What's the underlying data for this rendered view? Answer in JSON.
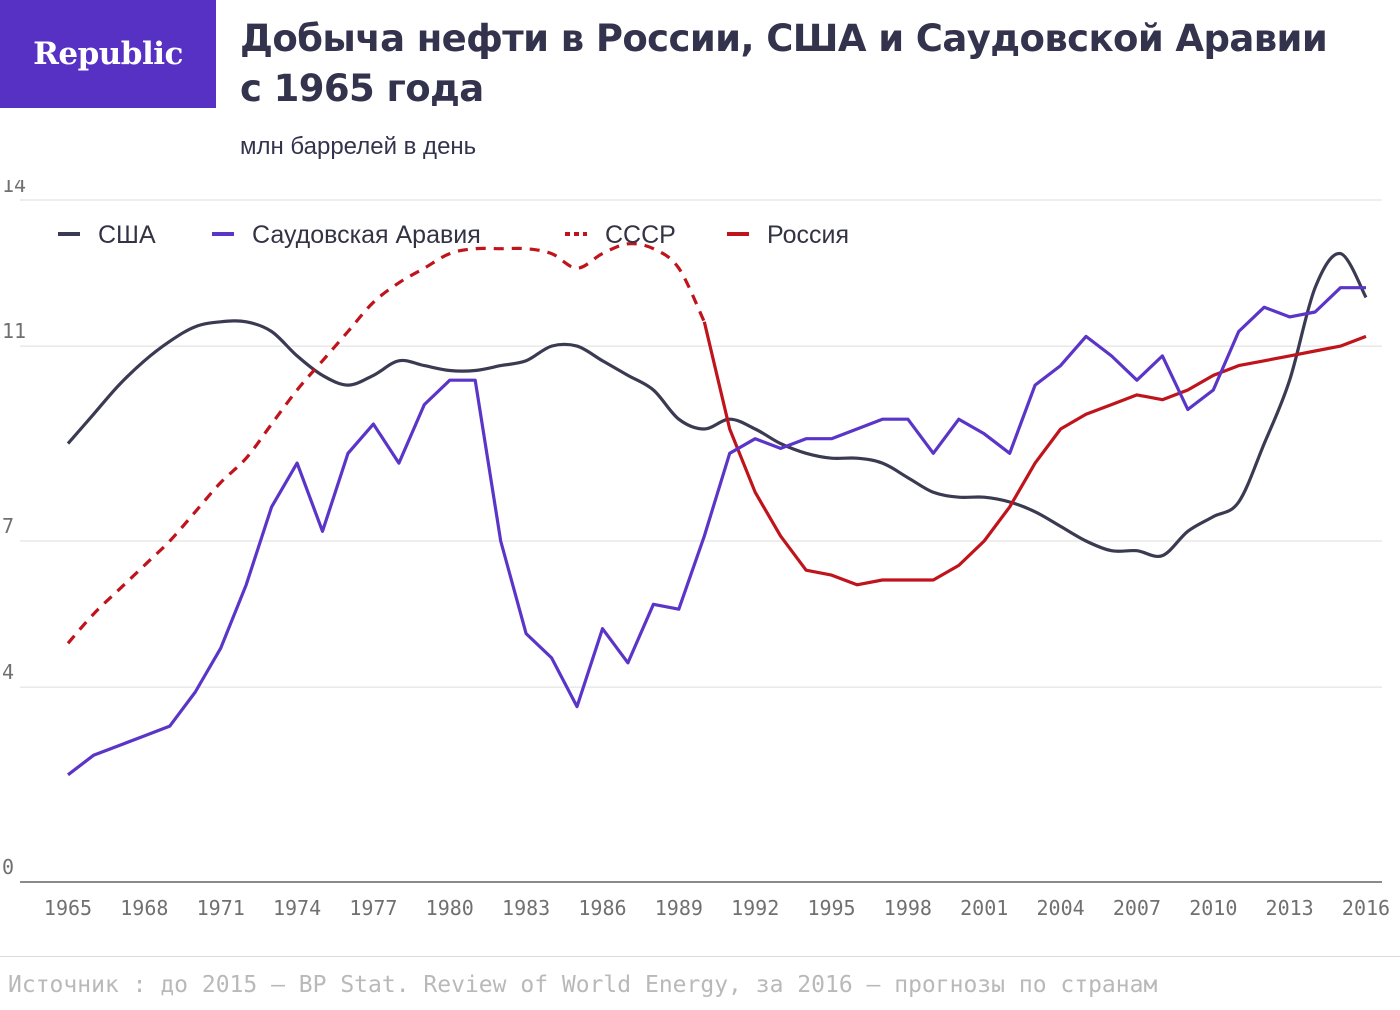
{
  "brand": {
    "logo_text": "Republic",
    "color": "#5731c4"
  },
  "title": "Добыча нефти в России, США и Саудовской Аравии с 1965 года",
  "subtitle": "млн баррелей в день",
  "source": "Источник : до 2015 – BP Stat. Review of World Energy, за 2016 – прогнозы по странам",
  "chart_data": {
    "type": "line",
    "ylim": [
      0,
      14
    ],
    "xlim": [
      1965,
      2016
    ],
    "y_ticks": [
      "0",
      "4",
      "7",
      "11",
      "14"
    ],
    "y_tick_values": [
      0,
      4,
      7,
      11,
      14
    ],
    "x_ticks": [
      "1965",
      "1968",
      "1971",
      "1974",
      "1977",
      "1980",
      "1983",
      "1986",
      "1989",
      "1992",
      "1995",
      "1998",
      "2001",
      "2004",
      "2007",
      "2010",
      "2013",
      "2016"
    ],
    "grid": true,
    "legend_position": "top-left",
    "series": [
      {
        "name": "США",
        "color": "#3a3a52",
        "dashed": false,
        "smooth": true,
        "x": [
          1965,
          1966,
          1967,
          1968,
          1969,
          1970,
          1971,
          1972,
          1973,
          1974,
          1975,
          1976,
          1977,
          1978,
          1979,
          1980,
          1981,
          1982,
          1983,
          1984,
          1985,
          1986,
          1987,
          1988,
          1989,
          1990,
          1991,
          1992,
          1993,
          1994,
          1995,
          1996,
          1997,
          1998,
          1999,
          2000,
          2001,
          2002,
          2003,
          2004,
          2005,
          2006,
          2007,
          2008,
          2009,
          2010,
          2011,
          2012,
          2013,
          2014,
          2015,
          2016
        ],
        "values": [
          9.0,
          9.6,
          10.2,
          10.7,
          11.1,
          11.4,
          11.5,
          11.5,
          11.3,
          10.8,
          10.4,
          10.2,
          10.4,
          10.7,
          10.6,
          10.5,
          10.5,
          10.6,
          10.7,
          11.0,
          11.0,
          10.7,
          10.4,
          10.1,
          9.5,
          9.3,
          9.5,
          9.3,
          9.0,
          8.8,
          8.7,
          8.7,
          8.6,
          8.3,
          8.0,
          7.9,
          7.9,
          7.8,
          7.6,
          7.3,
          7.0,
          6.8,
          6.8,
          6.7,
          7.2,
          7.5,
          7.8,
          9.0,
          10.3,
          12.2,
          12.9,
          12.0
        ]
      },
      {
        "name": "Саудовская Аравия",
        "color": "#5b35c8",
        "dashed": false,
        "smooth": false,
        "x": [
          1965,
          1966,
          1967,
          1968,
          1969,
          1970,
          1971,
          1972,
          1973,
          1974,
          1975,
          1976,
          1977,
          1978,
          1979,
          1980,
          1981,
          1982,
          1983,
          1984,
          1985,
          1986,
          1987,
          1988,
          1989,
          1990,
          1991,
          1992,
          1993,
          1994,
          1995,
          1996,
          1997,
          1998,
          1999,
          2000,
          2001,
          2002,
          2003,
          2004,
          2005,
          2006,
          2007,
          2008,
          2009,
          2010,
          2011,
          2012,
          2013,
          2014,
          2015,
          2016
        ],
        "values": [
          2.2,
          2.6,
          2.8,
          3.0,
          3.2,
          3.9,
          4.8,
          6.1,
          7.7,
          8.6,
          7.2,
          8.8,
          9.4,
          8.6,
          9.8,
          10.3,
          10.3,
          7.0,
          5.1,
          4.6,
          3.6,
          5.2,
          4.5,
          5.7,
          5.6,
          7.1,
          8.8,
          9.1,
          8.9,
          9.1,
          9.1,
          9.3,
          9.5,
          9.5,
          8.8,
          9.5,
          9.2,
          8.8,
          10.2,
          10.6,
          11.2,
          10.8,
          10.3,
          10.8,
          9.7,
          10.1,
          11.3,
          11.8,
          11.6,
          11.7,
          12.2,
          12.2
        ]
      },
      {
        "name": "СССР",
        "color": "#c0141c",
        "dashed": true,
        "smooth": true,
        "x": [
          1965,
          1966,
          1967,
          1968,
          1969,
          1970,
          1971,
          1972,
          1973,
          1974,
          1975,
          1976,
          1977,
          1978,
          1979,
          1980,
          1981,
          1982,
          1983,
          1984,
          1985,
          1986,
          1987,
          1988,
          1989,
          1990
        ],
        "values": [
          4.9,
          5.5,
          6.0,
          6.5,
          7.0,
          7.6,
          8.2,
          8.7,
          9.4,
          10.1,
          10.7,
          11.3,
          11.9,
          12.3,
          12.6,
          12.9,
          13.0,
          13.0,
          13.0,
          12.9,
          12.6,
          12.9,
          13.1,
          13.0,
          12.6,
          11.5
        ]
      },
      {
        "name": "Россия",
        "color": "#c0141c",
        "dashed": false,
        "smooth": false,
        "x": [
          1990,
          1991,
          1992,
          1993,
          1994,
          1995,
          1996,
          1997,
          1998,
          1999,
          2000,
          2001,
          2002,
          2003,
          2004,
          2005,
          2006,
          2007,
          2008,
          2009,
          2010,
          2011,
          2012,
          2013,
          2014,
          2015,
          2016
        ],
        "values": [
          11.5,
          9.3,
          8.0,
          7.1,
          6.4,
          6.3,
          6.1,
          6.2,
          6.2,
          6.2,
          6.5,
          7.0,
          7.7,
          8.6,
          9.3,
          9.6,
          9.8,
          10.0,
          9.9,
          10.1,
          10.4,
          10.6,
          10.7,
          10.8,
          10.9,
          11.0,
          11.2
        ]
      }
    ]
  }
}
